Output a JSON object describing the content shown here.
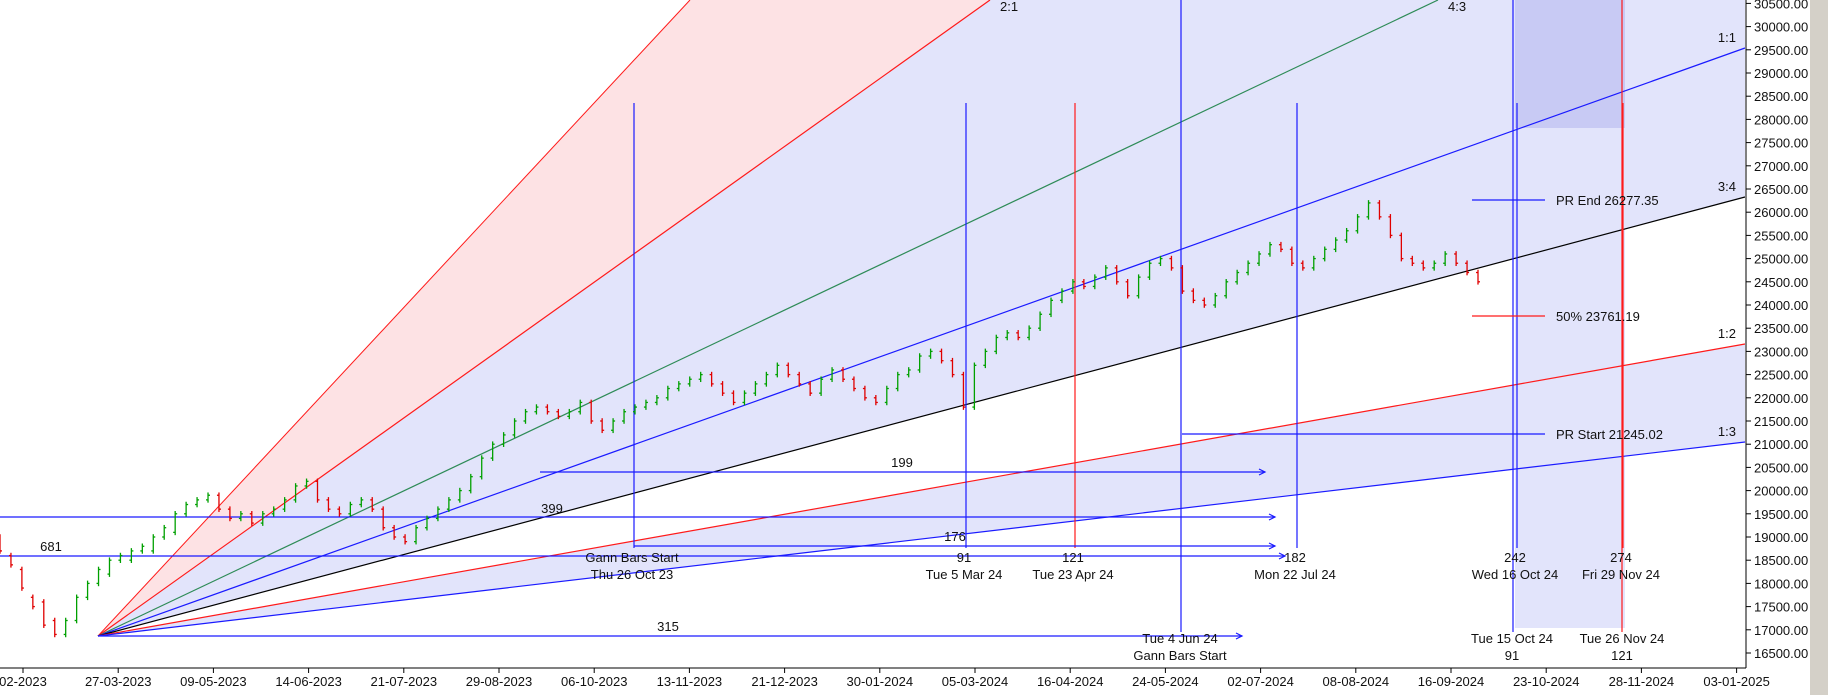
{
  "chart_data": {
    "type": "candlestick",
    "y_axis": {
      "range": [
        16400,
        30700
      ],
      "tick_labels": [
        "16500.00",
        "17000.00",
        "17500.00",
        "18000.00",
        "18500.00",
        "19000.00",
        "19500.00",
        "20000.00",
        "20500.00",
        "21000.00",
        "21500.00",
        "22000.00",
        "22500.00",
        "23000.00",
        "23500.00",
        "24000.00",
        "24500.00",
        "25000.00",
        "25500.00",
        "26000.00",
        "26500.00",
        "27000.00",
        "27500.00",
        "28000.00",
        "28500.00",
        "29000.00",
        "29500.00",
        "30000.00",
        "30500.00"
      ]
    },
    "x_axis": {
      "tick_labels": [
        "02-2023",
        "27-03-2023",
        "09-05-2023",
        "14-06-2023",
        "21-07-2023",
        "29-08-2023",
        "06-10-2023",
        "13-11-2023",
        "21-12-2023",
        "30-01-2024",
        "05-03-2024",
        "16-04-2024",
        "24-05-2024",
        "02-07-2024",
        "08-08-2024",
        "16-09-2024",
        "23-10-2024",
        "28-11-2024",
        "03-01-2025"
      ]
    },
    "colors": {
      "up": "#00a000",
      "down": "#e00000",
      "fan_blue": "#1a1aff",
      "fan_red": "#ff1a1a",
      "fan_green": "#2e8b57",
      "black_line": "#000000",
      "shade_blue": "#e2e4fb",
      "shade_red": "#fde2e4",
      "shade_dark": "#c8caf4"
    },
    "gann_fan": {
      "origin": {
        "date": "27-03-2023",
        "price": 16850
      },
      "lines": [
        {
          "label": "2:1",
          "color": "red"
        },
        {
          "label": "4:3",
          "color": "green"
        },
        {
          "label": "1:1",
          "color": "blue"
        },
        {
          "label": "3:4",
          "color": "black"
        },
        {
          "label": "1:2",
          "color": "red"
        },
        {
          "label": "1:3",
          "color": "blue"
        }
      ]
    },
    "price_levels": [
      {
        "label": "PR End 26277.35",
        "price": 26277.35
      },
      {
        "label": "50% 23761.19",
        "price": 23761.19
      },
      {
        "label": "PR Start 21245.02",
        "price": 21245.02
      }
    ],
    "bar_counts": [
      {
        "label": "199"
      },
      {
        "label": "399"
      },
      {
        "label": "176"
      },
      {
        "label": "681"
      },
      {
        "label": "315"
      }
    ],
    "vertical_markers": [
      {
        "count": "",
        "date_label": "Gann Bars Start",
        "sub_label": "Thu 26 Oct 23",
        "color": "blue"
      },
      {
        "count": "91",
        "date_label": "Tue 5 Mar 24",
        "color": "blue"
      },
      {
        "count": "121",
        "date_label": "Tue 23 Apr 24",
        "color": "red"
      },
      {
        "count": "182",
        "date_label": "Mon 22 Jul 24",
        "color": "blue"
      },
      {
        "count": "242",
        "date_label": "Wed 16 Oct 24",
        "color": "blue"
      },
      {
        "count": "274",
        "date_label": "Fri 29 Nov 24",
        "color": "red"
      }
    ],
    "bottom_markers": [
      {
        "label": "Tue 4 Jun 24",
        "sub_label": "Gann Bars Start"
      },
      {
        "label": "Tue 15 Oct 24",
        "sub_label": "91"
      },
      {
        "label": "Tue 26 Nov 24",
        "sub_label": "121"
      }
    ],
    "series": [
      {
        "name": "",
        "points": [
          [
            19000,
            18700
          ],
          [
            18600,
            18400
          ],
          [
            18300,
            17900
          ],
          [
            17700,
            17500
          ],
          [
            17600,
            17100
          ],
          [
            17200,
            16900
          ],
          [
            16900,
            17200
          ],
          [
            17200,
            17700
          ],
          [
            17700,
            18000
          ],
          [
            18000,
            18300
          ],
          [
            18200,
            18500
          ],
          [
            18500,
            18600
          ],
          [
            18500,
            18700
          ],
          [
            18700,
            18800
          ],
          [
            18700,
            19000
          ],
          [
            19000,
            19200
          ],
          [
            19100,
            19500
          ],
          [
            19500,
            19700
          ],
          [
            19700,
            19800
          ],
          [
            19800,
            19900
          ],
          [
            19900,
            19600
          ],
          [
            19600,
            19400
          ],
          [
            19400,
            19500
          ],
          [
            19500,
            19300
          ],
          [
            19300,
            19500
          ],
          [
            19500,
            19600
          ],
          [
            19600,
            19800
          ],
          [
            19800,
            20100
          ],
          [
            20100,
            20200
          ],
          [
            20200,
            19800
          ],
          [
            19800,
            19600
          ],
          [
            19600,
            19500
          ],
          [
            19500,
            19700
          ],
          [
            19700,
            19800
          ],
          [
            19800,
            19600
          ],
          [
            19600,
            19200
          ],
          [
            19200,
            19000
          ],
          [
            19000,
            18900
          ],
          [
            18900,
            19200
          ],
          [
            19200,
            19400
          ],
          [
            19400,
            19600
          ],
          [
            19600,
            19800
          ],
          [
            19800,
            20000
          ],
          [
            20000,
            20300
          ],
          [
            20300,
            20700
          ],
          [
            20700,
            21000
          ],
          [
            21000,
            21200
          ],
          [
            21200,
            21500
          ],
          [
            21500,
            21700
          ],
          [
            21700,
            21800
          ],
          [
            21800,
            21700
          ],
          [
            21700,
            21600
          ],
          [
            21600,
            21700
          ],
          [
            21700,
            21900
          ],
          [
            21900,
            21500
          ],
          [
            21500,
            21300
          ],
          [
            21300,
            21500
          ],
          [
            21500,
            21700
          ],
          [
            21700,
            21800
          ],
          [
            21800,
            21900
          ],
          [
            21900,
            22000
          ],
          [
            22000,
            22200
          ],
          [
            22200,
            22300
          ],
          [
            22300,
            22400
          ],
          [
            22400,
            22500
          ],
          [
            22500,
            22300
          ],
          [
            22300,
            22100
          ],
          [
            22100,
            21900
          ],
          [
            21900,
            22100
          ],
          [
            22100,
            22300
          ],
          [
            22300,
            22500
          ],
          [
            22500,
            22700
          ],
          [
            22700,
            22500
          ],
          [
            22500,
            22300
          ],
          [
            22300,
            22100
          ],
          [
            22100,
            22400
          ],
          [
            22400,
            22600
          ],
          [
            22600,
            22400
          ],
          [
            22400,
            22200
          ],
          [
            22200,
            22000
          ],
          [
            22000,
            21900
          ],
          [
            21900,
            22200
          ],
          [
            22200,
            22500
          ],
          [
            22500,
            22600
          ],
          [
            22600,
            22900
          ],
          [
            22900,
            23000
          ],
          [
            23000,
            22800
          ],
          [
            22800,
            22500
          ],
          [
            22500,
            21800
          ],
          [
            21800,
            22700
          ],
          [
            22700,
            23000
          ],
          [
            23000,
            23300
          ],
          [
            23300,
            23400
          ],
          [
            23400,
            23300
          ],
          [
            23300,
            23500
          ],
          [
            23500,
            23800
          ],
          [
            23800,
            24100
          ],
          [
            24100,
            24300
          ],
          [
            24300,
            24500
          ],
          [
            24500,
            24400
          ],
          [
            24400,
            24600
          ],
          [
            24600,
            24800
          ],
          [
            24800,
            24500
          ],
          [
            24500,
            24200
          ],
          [
            24200,
            24600
          ],
          [
            24600,
            24900
          ],
          [
            24900,
            25000
          ],
          [
            25000,
            24800
          ],
          [
            24800,
            24300
          ],
          [
            24300,
            24100
          ],
          [
            24100,
            24000
          ],
          [
            24000,
            24200
          ],
          [
            24200,
            24500
          ],
          [
            24500,
            24700
          ],
          [
            24700,
            24900
          ],
          [
            24900,
            25100
          ],
          [
            25100,
            25300
          ],
          [
            25300,
            25200
          ],
          [
            25200,
            24900
          ],
          [
            24900,
            24800
          ],
          [
            24800,
            25000
          ],
          [
            25000,
            25200
          ],
          [
            25200,
            25400
          ],
          [
            25400,
            25600
          ],
          [
            25600,
            25900
          ],
          [
            25900,
            26200
          ],
          [
            26200,
            25900
          ],
          [
            25900,
            25500
          ],
          [
            25500,
            25000
          ],
          [
            25000,
            24900
          ],
          [
            24900,
            24800
          ],
          [
            24800,
            24900
          ],
          [
            24900,
            25100
          ],
          [
            25100,
            24900
          ],
          [
            24900,
            24700
          ],
          [
            24700,
            24500
          ]
        ]
      }
    ]
  }
}
